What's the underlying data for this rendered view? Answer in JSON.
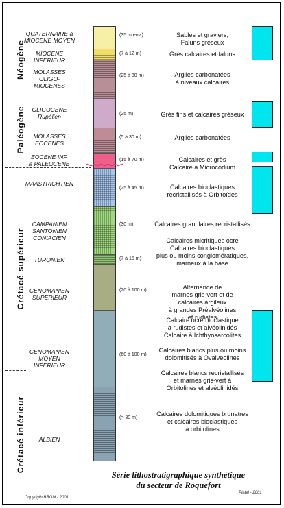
{
  "eras": [
    {
      "name": "Néogène"
    },
    {
      "name": "Paléogène"
    },
    {
      "name": "Crétacé supérieur"
    },
    {
      "name": "Crétacé inférieur"
    }
  ],
  "layers": [
    {
      "stage": "QUATERNAIRE à\nMIOCENE MOYEN",
      "thickness": "(35 m env.)",
      "description": "Sables et graviers,\nFaluns gréseux",
      "color": "#f5f0a6",
      "pattern": "none"
    },
    {
      "stage": "MIOCENE\nINFERIEUR",
      "thickness": "(7 à 12 m)",
      "description": "Grès calcaires et faluns",
      "color": "#f2dc6a",
      "pattern": "hlines"
    },
    {
      "stage": "MOLASSES\nOLIGO-\nMIOCENES",
      "thickness": "(25 à 30 m)",
      "description": "Argiles carbonatées\nà niveaux calcaires",
      "color": "#b88f96",
      "pattern": "hlines"
    },
    {
      "stage": "OLIGOCENE\nRupélien",
      "thickness": "(25 m)",
      "description": "Grès fins et calcaires gréseux",
      "color": "#f4c8ee",
      "pattern": "dots"
    },
    {
      "stage": "MOLASSES\nEOCENES",
      "thickness": "(5 à 30 m)",
      "description": "Argiles carbonatées",
      "color": "#bd8c96",
      "pattern": "hlines"
    },
    {
      "stage": "EOCENE INF.\nà PALEOCENE",
      "thickness": "(15 à 70 m)",
      "description": "Calcaires et grès\nCalcaire à Microcodium",
      "color": "#ee5f8a",
      "pattern": "none"
    },
    {
      "stage": "MAASTRICHTIEN",
      "thickness": "(25 à 45 m)",
      "description": "Calcaires bioclastiques\nrecristallisés à Orbitoïdes",
      "color": "#a7c6ef",
      "pattern": "grid"
    },
    {
      "stage": "CAMPANIEN\nSANTONIEN\nCONIACIEN",
      "thickness": "(30 m)",
      "description": "Calcaires granulaires recristallisés",
      "color": "#9fd87e",
      "pattern": "grid"
    },
    {
      "stage": "TURONIEN",
      "thickness": "(7 à 15 m)",
      "description": "Calcaires micritiques ocre\nCalcaires bioclastiques\nplus ou moins conglomératiques,\nmarneux à la base",
      "color": "#8fc472",
      "pattern": "hlines"
    },
    {
      "stage": "CENOMANIEN\nSUPERIEUR",
      "thickness": "(20 à 100 m)",
      "description": "Alternance de\nmarnes gris-vert et de\ncalcaires argileux\nà grandes Préalvéolines\net rudistes",
      "color": "#c6cb9a",
      "pattern": "dots"
    },
    {
      "stage": "CENOMANIEN\nMOYEN\nINFERIEUR",
      "thickness": "(60 à 100 m)",
      "description": "Calcaire ocre bioclastique\nà rudistes et alvéolinidés\nCalcaire à Ichthyosarcolites\n\nCalcaires blancs plus ou moins\ndolomitisés à Ovalvéolines\n\nCalcaires blancs recristallisés\net marnes gris-vert à\nOrbitolines et alvéolinidés",
      "color": "#a9ccd8",
      "pattern": "dots"
    },
    {
      "stage": "ALBIEN",
      "thickness": "(> 80 m)",
      "description": "Calcaires dolomitiques brunatres\net calcaires bioclastiques\nà orbitolines",
      "color": "#8aa3b3",
      "pattern": "hlines"
    }
  ],
  "title": "Série lithostratigraphique synthétique\ndu secteur de Roquefort",
  "copyright": "Copyrigth BRGM - 2001",
  "author": "Platel - 2001",
  "reservoir_color": "#00e5ee"
}
